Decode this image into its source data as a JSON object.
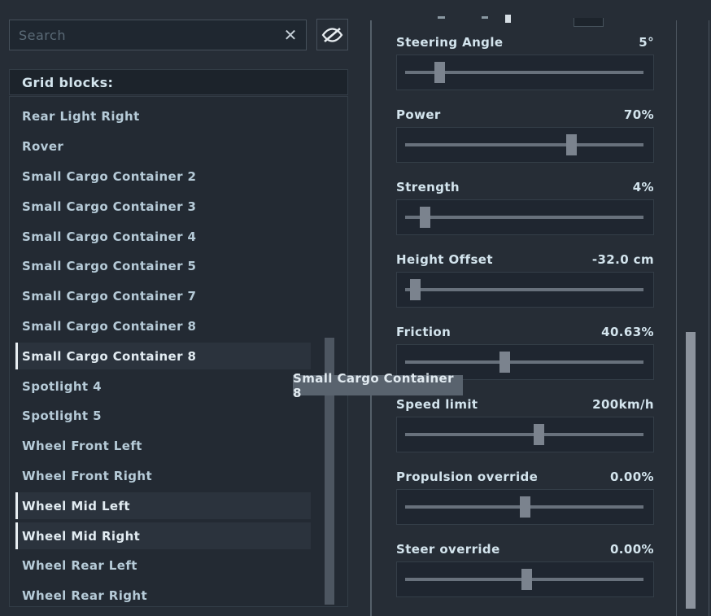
{
  "search": {
    "placeholder": "Search",
    "clear_label": "✕"
  },
  "left_panel": {
    "header": "Grid blocks:",
    "items": [
      {
        "label": "Rear Light Right",
        "selected": false
      },
      {
        "label": "Rover",
        "selected": false
      },
      {
        "label": "Small Cargo Container 2",
        "selected": false
      },
      {
        "label": "Small Cargo Container 3",
        "selected": false
      },
      {
        "label": "Small Cargo Container 4",
        "selected": false
      },
      {
        "label": "Small Cargo Container 5",
        "selected": false
      },
      {
        "label": "Small Cargo Container 7",
        "selected": false
      },
      {
        "label": "Small Cargo Container 8",
        "selected": false
      },
      {
        "label": "Small Cargo Container 8",
        "selected": true
      },
      {
        "label": "Spotlight 4",
        "selected": false
      },
      {
        "label": "Spotlight 5",
        "selected": false
      },
      {
        "label": "Wheel Front Left",
        "selected": false
      },
      {
        "label": "Wheel Front Right",
        "selected": false
      },
      {
        "label": "Wheel Mid Left",
        "selected": true
      },
      {
        "label": "Wheel Mid Right",
        "selected": true
      },
      {
        "label": "Wheel Rear Left",
        "selected": false
      },
      {
        "label": "Wheel Rear Right",
        "selected": false
      }
    ]
  },
  "tooltip": {
    "text": "Small Cargo Container 8"
  },
  "right_panel": {
    "sliders": [
      {
        "label": "Steering Angle",
        "value": "5°",
        "thumb_pct": 14.6
      },
      {
        "label": "Power",
        "value": "70%",
        "thumb_pct": 69.7
      },
      {
        "label": "Strength",
        "value": "4%",
        "thumb_pct": 8.2
      },
      {
        "label": "Height Offset",
        "value": "-32.0 cm",
        "thumb_pct": 4.4
      },
      {
        "label": "Friction",
        "value": "40.63%",
        "thumb_pct": 41.8
      },
      {
        "label": "Speed limit",
        "value": "200km/h",
        "thumb_pct": 55.8
      },
      {
        "label": "Propulsion override",
        "value": "0.00%",
        "thumb_pct": 50.3
      },
      {
        "label": "Steer override",
        "value": "0.00%",
        "thumb_pct": 50.7
      }
    ]
  },
  "icons": {
    "clear": "close-icon",
    "visibility": "eye-hidden-icon"
  },
  "colors": {
    "background": "#262d36",
    "panel_box": "#1f2630",
    "selected_row": "#2b333d",
    "selected_marker": "#e8eef2",
    "text": "#d3e4ed",
    "list_text": "#b6cbd8",
    "slider_track": "#68717c",
    "slider_thumb": "#7b838e",
    "tooltip_bg": "#59636e",
    "scrollbar_left": "#4d5661",
    "scrollbar_right": "#8c939d"
  }
}
